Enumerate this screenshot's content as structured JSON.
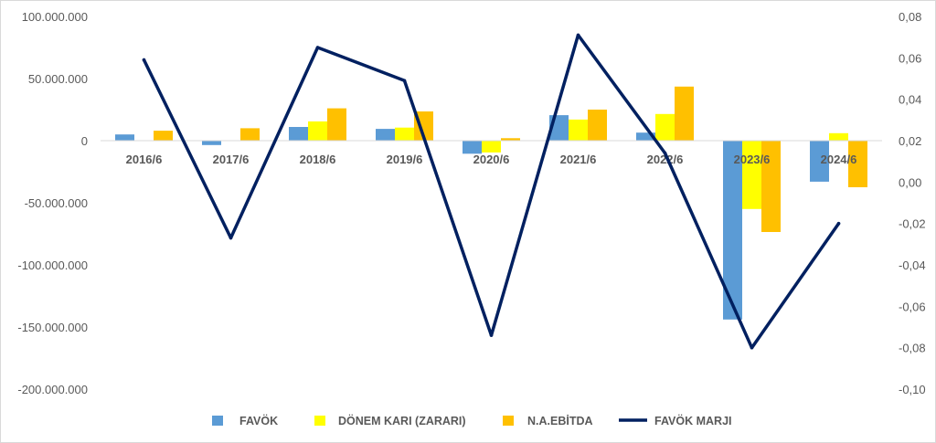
{
  "chart_data": {
    "type": "bar",
    "categories": [
      "2016/6",
      "2017/6",
      "2018/6",
      "2019/6",
      "2020/6",
      "2021/6",
      "2022/6",
      "2023/6",
      "2024/6"
    ],
    "series": [
      {
        "name": "FAVÖK",
        "type": "bar",
        "axis": "left",
        "color": "#5B9BD5",
        "values": [
          5000000,
          -3500000,
          11000000,
          9500000,
          -10500000,
          20500000,
          6500000,
          -144000000,
          -33000000
        ]
      },
      {
        "name": "DÖNEM KARI (ZARARI)",
        "type": "bar",
        "axis": "left",
        "color": "#FFFF00",
        "values": [
          0,
          0,
          15500000,
          10500000,
          -9500000,
          17000000,
          21500000,
          -55000000,
          6000000
        ]
      },
      {
        "name": "N.A.EBİTDA",
        "type": "bar",
        "axis": "left",
        "color": "#FFC000",
        "values": [
          8000000,
          10000000,
          26000000,
          23500000,
          2000000,
          25000000,
          43500000,
          -73500000,
          -37500000
        ]
      },
      {
        "name": "FAVÖK MARJI",
        "type": "line",
        "axis": "right",
        "color": "#002060",
        "values": [
          0.059,
          -0.027,
          0.065,
          0.049,
          -0.074,
          0.071,
          0.014,
          -0.08,
          -0.02
        ]
      }
    ],
    "y_left": {
      "ylim": [
        -200000000,
        100000000
      ],
      "ticks": [
        {
          "value": 100000000,
          "label": "100.000.000"
        },
        {
          "value": 50000000,
          "label": "50.000.000"
        },
        {
          "value": 0,
          "label": "0"
        },
        {
          "value": -50000000,
          "label": "-50.000.000"
        },
        {
          "value": -100000000,
          "label": "-100.000.000"
        },
        {
          "value": -150000000,
          "label": "-150.000.000"
        },
        {
          "value": -200000000,
          "label": "-200.000.000"
        }
      ]
    },
    "y_right": {
      "ylim": [
        -0.1,
        0.08
      ],
      "ticks": [
        {
          "value": 0.08,
          "label": "0,08"
        },
        {
          "value": 0.06,
          "label": "0,06"
        },
        {
          "value": 0.04,
          "label": "0,04"
        },
        {
          "value": 0.02,
          "label": "0,02"
        },
        {
          "value": 0.0,
          "label": "0,00"
        },
        {
          "value": -0.02,
          "label": "-0,02"
        },
        {
          "value": -0.04,
          "label": "-0,04"
        },
        {
          "value": -0.06,
          "label": "-0,06"
        },
        {
          "value": -0.08,
          "label": "-0,08"
        },
        {
          "value": -0.1,
          "label": "-0,10"
        }
      ]
    },
    "grid": false,
    "legend": "bottom"
  }
}
